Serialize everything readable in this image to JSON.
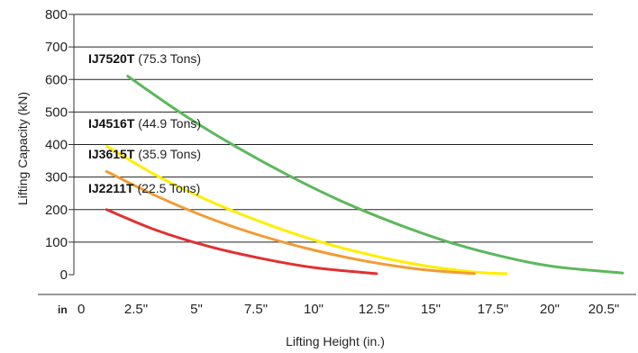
{
  "chart_data": {
    "type": "line",
    "ylabel": "Lifting Capacity (kN)",
    "xlabel": "Lifting Height (in.)",
    "x_unit_label": "in",
    "ylim": [
      0,
      800
    ],
    "xlim": [
      0,
      20.5
    ],
    "y_ticks": [
      "0",
      "100",
      "200",
      "300",
      "400",
      "500",
      "600",
      "700",
      "800"
    ],
    "x_ticks": [
      "0",
      "2.5\"",
      "5\"",
      "7.5\"",
      "10\"",
      "12.5\"",
      "15\"",
      "17.5\"",
      "20\"",
      "20.5\""
    ],
    "grid": "horizontal",
    "series": [
      {
        "name": "IJ7520T",
        "tons": "(75.3 Tons)",
        "color": "#5cb85c",
        "x": [
          1.9,
          4,
          6,
          8,
          10,
          12,
          14,
          16,
          18,
          20.6
        ],
        "values": [
          610,
          492,
          393,
          304,
          225,
          158,
          101,
          57,
          25,
          5
        ]
      },
      {
        "name": "IJ4516T",
        "tons": "(44.9 Tons)",
        "color": "#ffee00",
        "x": [
          1.1,
          3,
          5,
          7,
          9,
          11,
          13,
          15,
          16.2
        ],
        "values": [
          395,
          304,
          226,
          160,
          105,
          62,
          29,
          8,
          3
        ]
      },
      {
        "name": "IJ3615T",
        "tons": "(35.9 Tons)",
        "color": "#f29b35",
        "x": [
          1.1,
          3,
          5,
          7,
          9,
          11,
          13,
          15
        ],
        "values": [
          317,
          241,
          173,
          118,
          74,
          40,
          16,
          3
        ]
      },
      {
        "name": "IJ2211T",
        "tons": "(22.5 Tons)",
        "color": "#e03131",
        "x": [
          1.1,
          3,
          5,
          7,
          9,
          11.3
        ],
        "values": [
          200,
          136,
          86,
          49,
          21,
          3
        ]
      }
    ]
  }
}
